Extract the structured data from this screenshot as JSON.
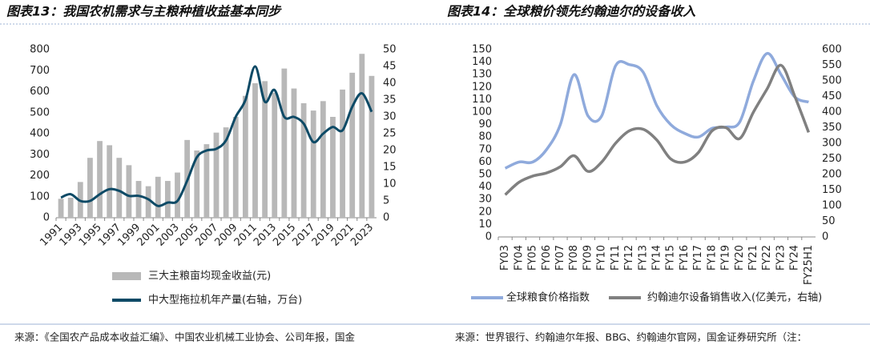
{
  "chart_data": [
    {
      "type": "bar",
      "title": "图表13：我国农机需求与主粮种植收益基本同步",
      "source": "来源：《全国农产品成本收益汇编》、中国农业机械工业协会、公司年报，国金",
      "categories": [
        "1991",
        null,
        "1993",
        null,
        "1995",
        null,
        "1997",
        null,
        "1999",
        null,
        "2001",
        null,
        "2003",
        null,
        "2005",
        null,
        "2007",
        null,
        "2009",
        null,
        "2011",
        null,
        "2013",
        null,
        "2015",
        null,
        "2017",
        null,
        "2019",
        null,
        "2021",
        null,
        "2023"
      ],
      "series": [
        {
          "name": "三大主粮亩均现金收益(元)",
          "color": "#b8b8b8",
          "values": [
            90,
            95,
            170,
            285,
            365,
            345,
            285,
            250,
            175,
            150,
            195,
            175,
            215,
            370,
            320,
            350,
            405,
            430,
            480,
            580,
            640,
            650,
            595,
            710,
            615,
            545,
            510,
            555,
            480,
            610,
            690,
            780,
            675
          ]
        },
        {
          "name": "中大型拖拉机年产量(右轴，万台)",
          "color": "#0d4a66",
          "type": "line",
          "axis": "y2",
          "values": [
            6,
            7,
            5,
            5,
            7,
            8.5,
            8,
            6.5,
            6.5,
            5.5,
            3.5,
            4.5,
            5,
            11,
            18,
            20,
            20.5,
            23,
            30,
            35,
            45,
            34.5,
            38,
            30,
            30,
            28,
            22.5,
            25,
            27,
            26,
            33,
            37,
            31.5
          ]
        }
      ],
      "ylim": [
        0,
        800
      ],
      "yticks": [
        0,
        100,
        200,
        300,
        400,
        500,
        600,
        700,
        800
      ],
      "y2lim": [
        0,
        50
      ],
      "y2ticks": [
        0,
        5,
        10,
        15,
        20,
        25,
        30,
        35,
        40,
        45,
        50
      ]
    },
    {
      "type": "line",
      "title": "图表14：全球粮价领先约翰迪尔的设备收入",
      "source": "来源：世界银行、约翰迪尔年报、BBG、约翰迪尔官网，国金证券研究所（注：",
      "categories": [
        "FY03",
        "FY04",
        "FY05",
        "FY06",
        "FY07",
        "FY08",
        "FY09",
        "FY10",
        "FY11",
        "FY12",
        "FY13",
        "FY14",
        "FY15",
        "FY16",
        "FY17",
        "FY18",
        "FY19",
        "FY20",
        "FY21",
        "FY22",
        "FY23",
        "FY24",
        "FY25H1"
      ],
      "series": [
        {
          "name": "全球粮食价格指数",
          "color": "#8faadc",
          "values": [
            55,
            60,
            60,
            70,
            90,
            130,
            97,
            97,
            137,
            138,
            132,
            105,
            90,
            83,
            80,
            87,
            88,
            92,
            125,
            147,
            130,
            112,
            108
          ]
        },
        {
          "name": "约翰迪尔设备销售收入(亿美元，右轴)",
          "color": "#808080",
          "axis": "y2",
          "values": [
            135,
            175,
            195,
            205,
            225,
            260,
            210,
            240,
            300,
            340,
            345,
            310,
            250,
            240,
            270,
            340,
            350,
            315,
            400,
            475,
            550,
            450,
            335
          ]
        }
      ],
      "ylim": [
        0,
        150
      ],
      "yticks": [
        0,
        10,
        20,
        30,
        40,
        50,
        60,
        70,
        80,
        90,
        100,
        110,
        120,
        130,
        140,
        150
      ],
      "y2lim": [
        0,
        600
      ],
      "y2ticks": [
        0,
        50,
        100,
        150,
        200,
        250,
        300,
        350,
        400,
        450,
        500,
        550,
        600
      ]
    }
  ]
}
